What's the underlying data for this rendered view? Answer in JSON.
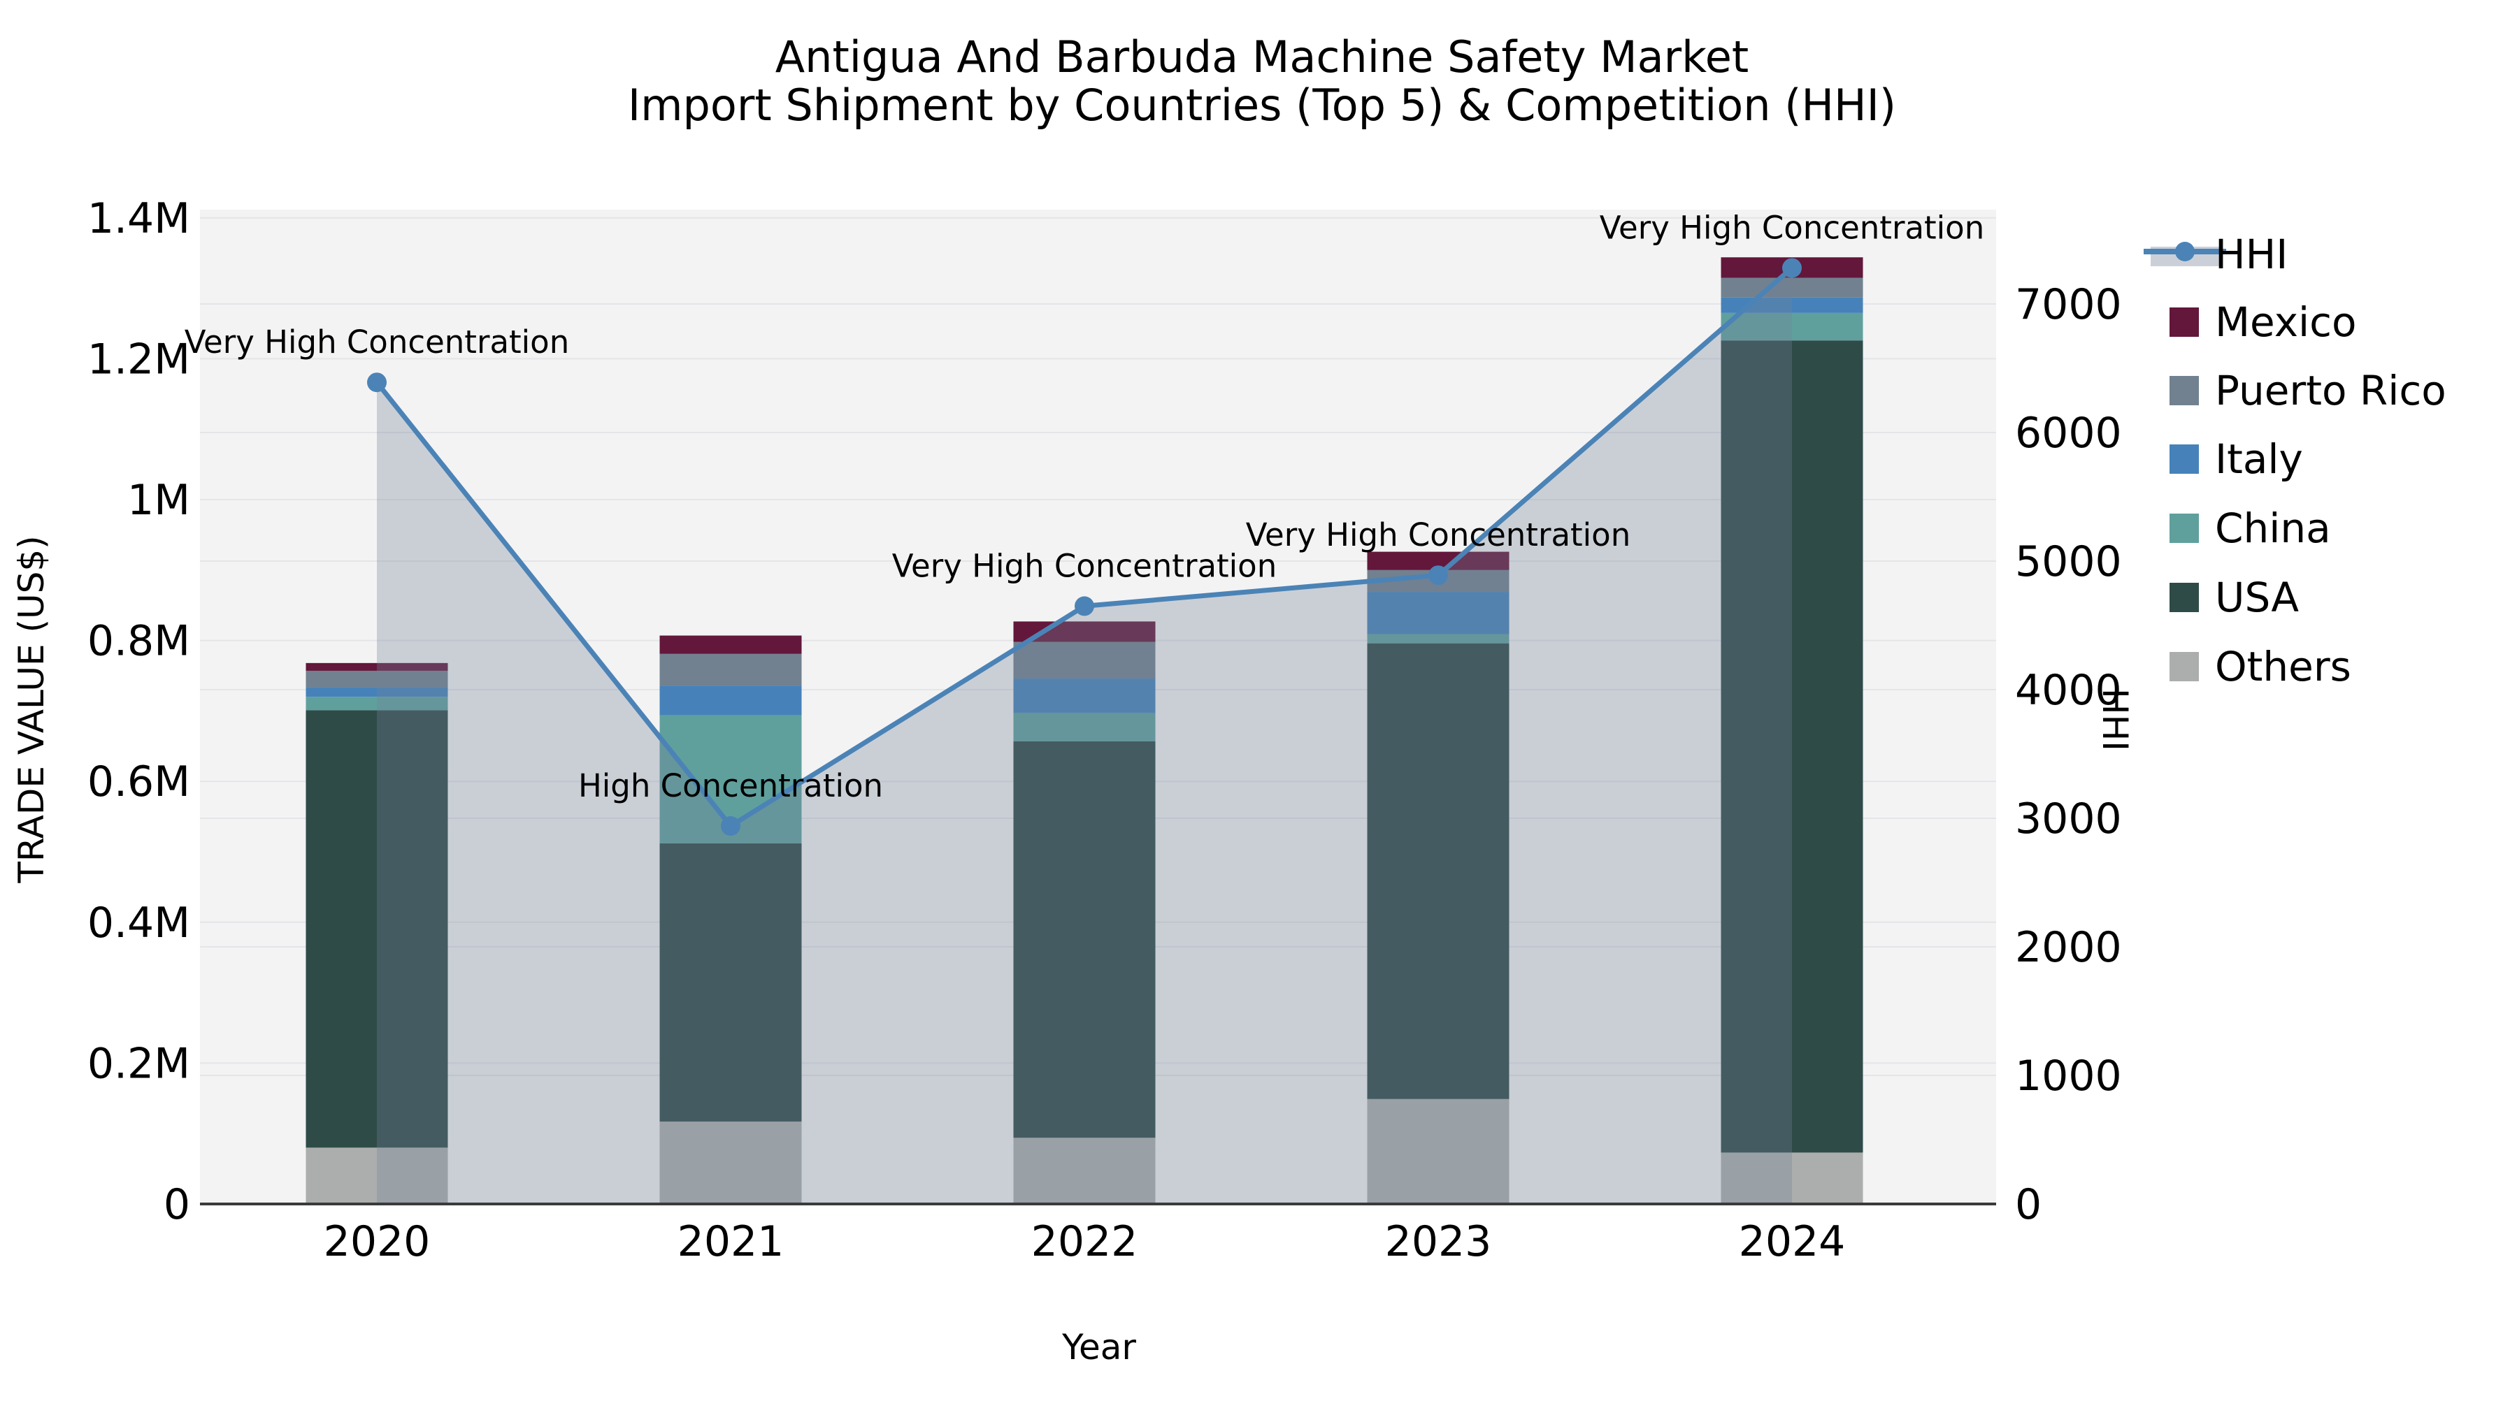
{
  "title": {
    "line1": "Antigua And Barbuda Machine Safety Market",
    "line2": "Import Shipment by Countries (Top 5) & Competition (HHI)"
  },
  "axes": {
    "x": {
      "label": "Year",
      "tick_labels": [
        "2020",
        "2021",
        "2022",
        "2023",
        "2024"
      ]
    },
    "left": {
      "label": "TRADE VALUE (US$)",
      "tick_values": [
        0,
        200000,
        400000,
        600000,
        800000,
        1000000,
        1200000,
        1400000
      ],
      "tick_labels": [
        "0",
        "0.2M",
        "0.4M",
        "0.6M",
        "0.8M",
        "1M",
        "1.2M",
        "1.4M"
      ]
    },
    "right": {
      "label": "HHI",
      "tick_values": [
        0,
        1000,
        2000,
        3000,
        4000,
        5000,
        6000,
        7000
      ],
      "tick_labels": [
        "0",
        "1000",
        "2000",
        "3000",
        "4000",
        "5000",
        "6000",
        "7000"
      ]
    }
  },
  "legend": {
    "items": [
      {
        "label": "HHI",
        "type": "line",
        "color": "#4B83B6",
        "band_color": "#CBD0D8"
      },
      {
        "label": "Mexico",
        "type": "patch",
        "color": "#63173A"
      },
      {
        "label": "Puerto Rico",
        "type": "patch",
        "color": "#71818F"
      },
      {
        "label": "Italy",
        "type": "patch",
        "color": "#4682B9"
      },
      {
        "label": "China",
        "type": "patch",
        "color": "#5FA09D"
      },
      {
        "label": "USA",
        "type": "patch",
        "color": "#2E4B47"
      },
      {
        "label": "Others",
        "type": "patch",
        "color": "#ABAEAD"
      }
    ]
  },
  "chart_data": {
    "type": "bar+line",
    "categories": [
      "2020",
      "2021",
      "2022",
      "2023",
      "2024"
    ],
    "stacked_bar_unit": "US$ trade value",
    "series": [
      {
        "name": "Others",
        "color": "#ABAEAD",
        "values": [
          80000,
          117000,
          94000,
          149000,
          73000
        ]
      },
      {
        "name": "USA",
        "color": "#2E4B47",
        "values": [
          621000,
          395000,
          563000,
          647000,
          1153000
        ]
      },
      {
        "name": "China",
        "color": "#5FA09D",
        "values": [
          19000,
          182000,
          40000,
          13000,
          39000
        ]
      },
      {
        "name": "Italy",
        "color": "#4682B9",
        "values": [
          14000,
          42000,
          49000,
          60000,
          22000
        ]
      },
      {
        "name": "Puerto Rico",
        "color": "#71818F",
        "values": [
          23000,
          45000,
          52000,
          31000,
          28000
        ]
      },
      {
        "name": "Mexico",
        "color": "#63173A",
        "values": [
          11000,
          26000,
          29000,
          26000,
          29000
        ]
      }
    ],
    "totals": [
      768000,
      807000,
      827000,
      926000,
      1344000
    ],
    "line_series": {
      "name": "HHI",
      "axis": "right",
      "color": "#4B83B6",
      "area_fill": "rgba(114,130,152,0.32)",
      "values": [
        6390,
        2940,
        4650,
        4890,
        7280
      ]
    },
    "annotations": [
      "Very High Concentration",
      "High Concentration",
      "Very High Concentration",
      "Very High Concentration",
      "Very High Concentration"
    ],
    "ylim_left": [
      0,
      1420000
    ],
    "ylim_right": [
      0,
      7730
    ],
    "grid": true,
    "legend_position": "outside-top-right"
  },
  "style": {
    "plot_bg": "#f3f3f4",
    "grid_color": "#e4e5e8",
    "baseline_color": "#3b3b3b",
    "annotation_color": "#111111"
  }
}
